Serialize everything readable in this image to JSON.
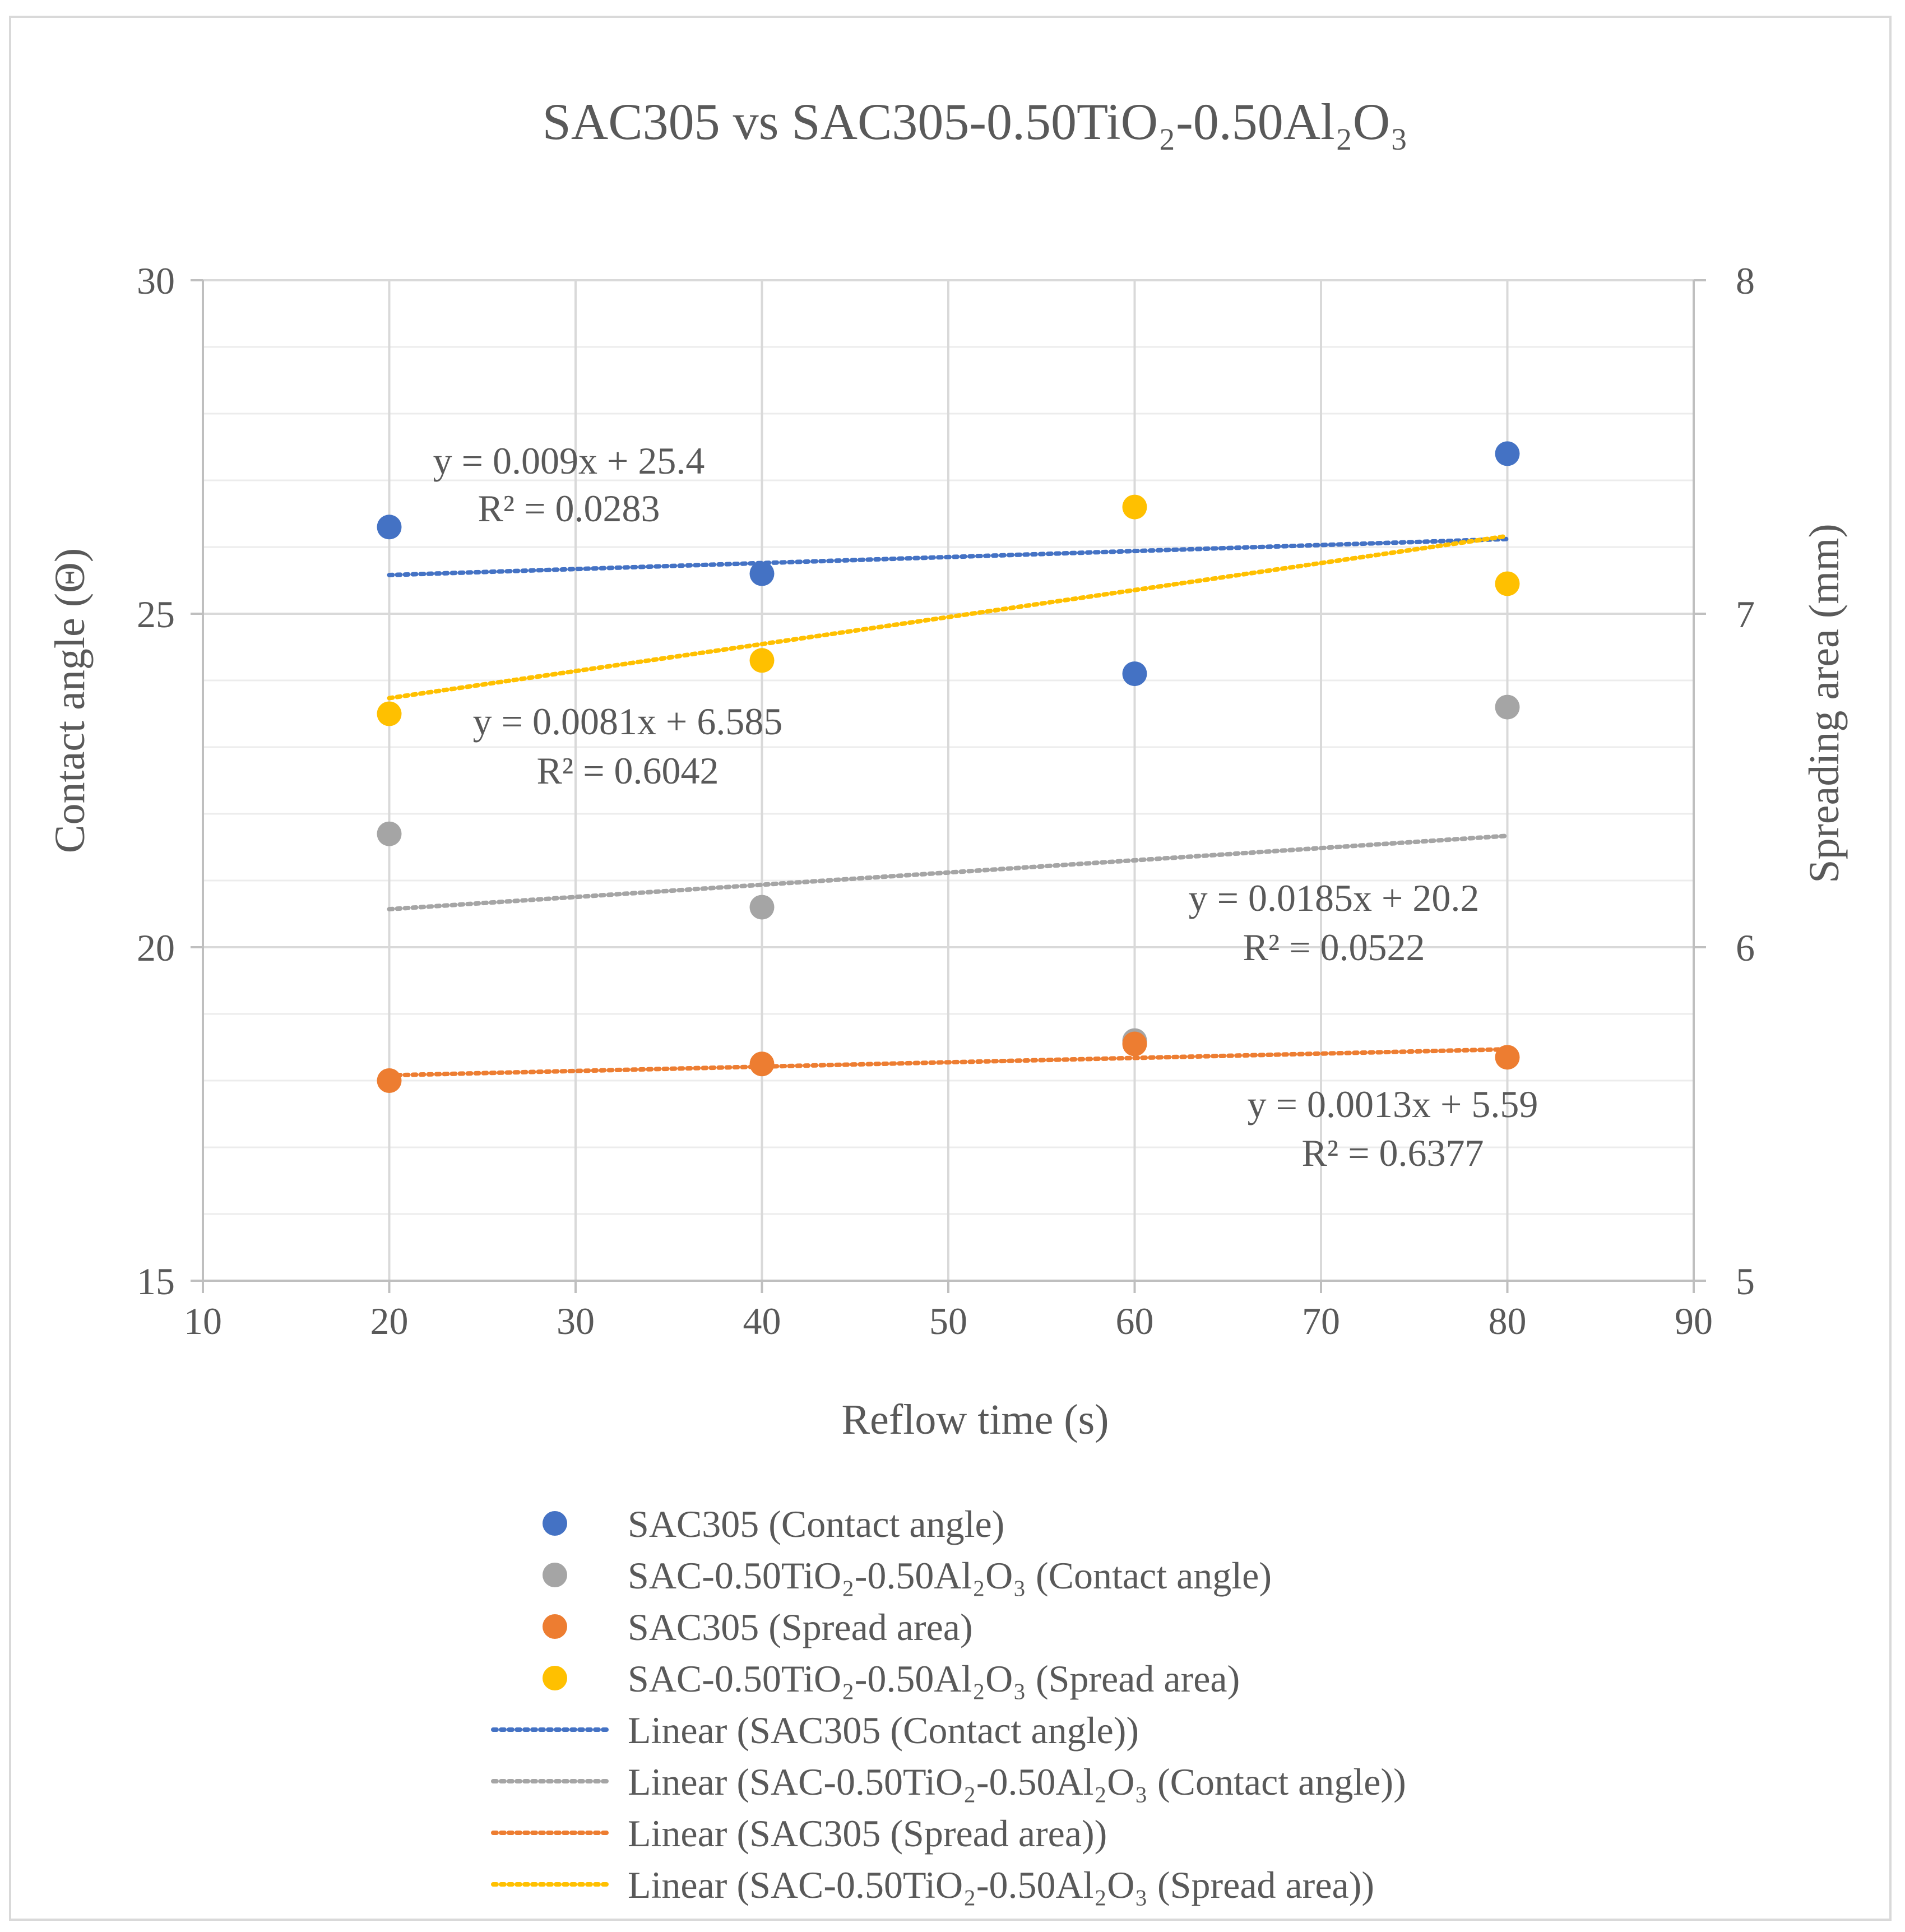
{
  "chart_data": {
    "type": "scatter",
    "title": "SAC305 vs SAC305-0.50TiO₂-0.50Al₂O₃",
    "xlabel": "Reflow time (s)",
    "ylabel": "Contact angle (Θ)",
    "y2label": "Spreading area (mm)",
    "xlim": [
      10,
      90
    ],
    "ylim": [
      15,
      30
    ],
    "y2lim": [
      5,
      8
    ],
    "xticks": [
      10,
      20,
      30,
      40,
      50,
      60,
      70,
      80,
      90
    ],
    "yticks": [
      15,
      20,
      25,
      30
    ],
    "y2ticks": [
      5,
      6,
      7,
      8
    ],
    "grid": true,
    "legend_position": "bottom",
    "colors": {
      "blue": "#4472c4",
      "gray": "#a5a5a5",
      "orange": "#ed7d31",
      "yellow": "#ffc000",
      "text": "#595959",
      "grid": "#d9d9d9"
    },
    "series": [
      {
        "name": "SAC305 (Contact angle)",
        "axis": "left",
        "color": "#4472c4",
        "x": [
          20,
          40,
          60,
          80
        ],
        "y": [
          26.3,
          25.6,
          24.1,
          27.4
        ]
      },
      {
        "name": "SAC-0.50TiO₂-0.50Al₂O₃ (Contact angle)",
        "axis": "left",
        "color": "#a5a5a5",
        "x": [
          20,
          40,
          60,
          80
        ],
        "y": [
          21.7,
          20.6,
          18.6,
          23.6
        ]
      },
      {
        "name": "SAC305 (Spread area)",
        "axis": "right",
        "color": "#ed7d31",
        "x": [
          20,
          40,
          60,
          80
        ],
        "y": [
          5.6,
          5.65,
          5.71,
          5.67
        ]
      },
      {
        "name": "SAC-0.50TiO₂-0.50Al₂O₃ (Spread area)",
        "axis": "right",
        "color": "#ffc000",
        "x": [
          20,
          40,
          60,
          80
        ],
        "y": [
          6.7,
          6.86,
          7.32,
          7.09
        ]
      }
    ],
    "trendlines": [
      {
        "name": "Linear (SAC305 (Contact angle))",
        "axis": "left",
        "color": "#4472c4",
        "x": [
          20,
          80
        ],
        "y": [
          25.58,
          26.12
        ]
      },
      {
        "name": "Linear (SAC-0.50TiO₂-0.50Al₂O₃ (Contact angle))",
        "axis": "left",
        "color": "#a5a5a5",
        "x": [
          20,
          80
        ],
        "y": [
          20.57,
          21.67
        ]
      },
      {
        "name": "Linear (SAC305 (Spread area))",
        "axis": "right",
        "color": "#ed7d31",
        "x": [
          20,
          80
        ],
        "y": [
          5.616,
          5.694
        ]
      },
      {
        "name": "Linear (SAC-0.50TiO₂-0.50Al₂O₃ (Spread area))",
        "axis": "right",
        "color": "#ffc000",
        "x": [
          20,
          80
        ],
        "y": [
          6.747,
          7.233
        ]
      }
    ],
    "annotations": [
      {
        "id": "eq-blue",
        "line1": "y = 0.009x + 25.4",
        "line2": "R² = 0.0283"
      },
      {
        "id": "eq-yellow",
        "line1": "y = 0.0081x + 6.585",
        "line2": "R² = 0.6042"
      },
      {
        "id": "eq-gray",
        "line1": "y = 0.0185x + 20.2",
        "line2": "R² = 0.0522"
      },
      {
        "id": "eq-orange",
        "line1": "y = 0.0013x + 5.59",
        "line2": "R² = 0.6377"
      }
    ]
  }
}
